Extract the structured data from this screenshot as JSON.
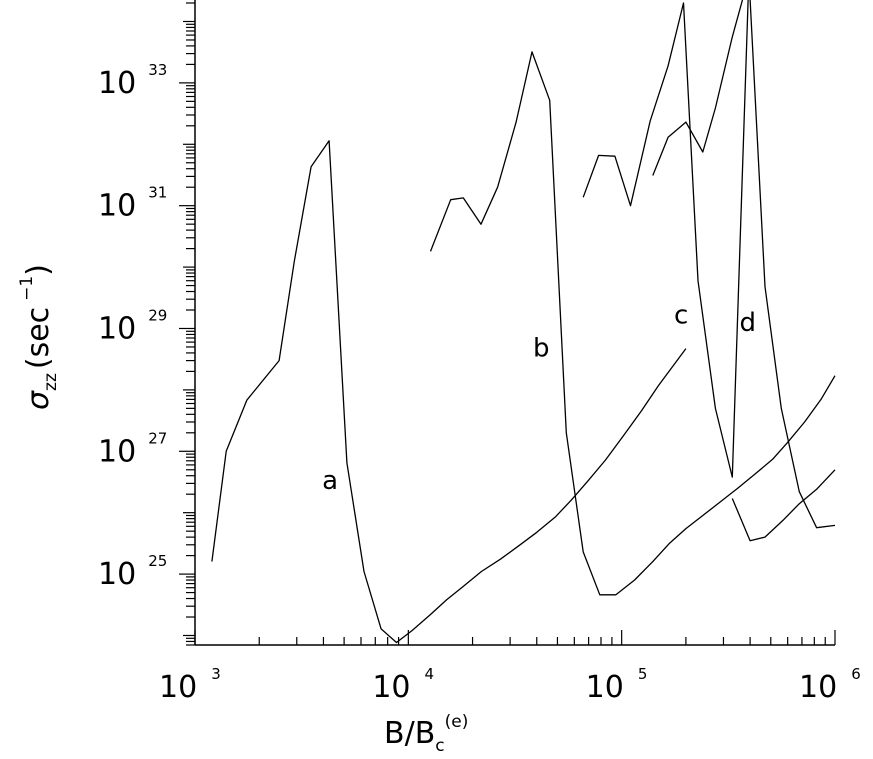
{
  "chart_data": {
    "type": "line",
    "xscale": "log",
    "yscale": "log",
    "xlim": [
      1000,
      1000000
    ],
    "ylim": [
      7e+23,
      2e+34
    ],
    "grid": false,
    "xlabel": {
      "main": "B/B",
      "sub": "c",
      "sup": "(e)"
    },
    "ylabel": {
      "sym": "σ",
      "sub": "zz",
      "text": "(sec",
      "sup": "−1",
      "close": ")"
    },
    "xticks": [
      {
        "value": 1000,
        "base": "10",
        "exp": "3"
      },
      {
        "value": 10000,
        "base": "10",
        "exp": "4"
      },
      {
        "value": 100000,
        "base": "10",
        "exp": "5"
      },
      {
        "value": 1000000,
        "base": "10",
        "exp": "6"
      }
    ],
    "yticks": [
      {
        "value": 1e+25,
        "base": "10",
        "exp": "25"
      },
      {
        "value": 1e+27,
        "base": "10",
        "exp": "27"
      },
      {
        "value": 1e+29,
        "base": "10",
        "exp": "29"
      },
      {
        "value": 1e+31,
        "base": "10",
        "exp": "31"
      },
      {
        "value": 1e+33,
        "base": "10",
        "exp": "33"
      }
    ],
    "annotations": [
      {
        "text": "a",
        "x": 4300,
        "y": 3.2e+26
      },
      {
        "text": "b",
        "x": 42000,
        "y": 4.6e+28
      },
      {
        "text": "c",
        "x": 190000,
        "y": 1.6e+29
      },
      {
        "text": "d",
        "x": 390000,
        "y": 1.2e+29
      }
    ],
    "series": [
      {
        "id": "a-high",
        "x": [
          1200,
          1400,
          1750,
          2480,
          2920,
          3500,
          4250,
          5150,
          6200,
          7450,
          8800,
          10400,
          12700,
          15100,
          18100,
          22000,
          27000,
          33000,
          40000,
          49000,
          58000,
          69000,
          84000,
          102000,
          124000,
          148000,
          200000
        ],
        "y": [
          1.6e+25,
          1e+27,
          6.8e+27,
          3e+28,
          1.24e+30,
          4.3e+31,
          1.14e+32,
          6.5e+26,
          1.1e+25,
          1.28e+24,
          7.7e+23,
          1.2e+24,
          2.2e+24,
          3.8e+24,
          6.3e+24,
          1.1e+25,
          1.75e+25,
          2.9e+25,
          4.8e+25,
          8.6e+25,
          1.6e+26,
          3.2e+26,
          7.2e+26,
          1.8e+27,
          4.6e+27,
          1.15e+28,
          4.7e+28
        ]
      },
      {
        "id": "a-low",
        "x": [
          12700,
          15800,
          18100,
          21900,
          26200,
          32000,
          38000,
          46000,
          55000,
          66000,
          79000,
          94000,
          115000,
          140000,
          168000,
          200000,
          240000,
          290000,
          350000,
          420000,
          510000,
          600000,
          720000,
          860000,
          1000000
        ],
        "y": [
          1.8e+30,
          1.25e+31,
          1.34e+31,
          5e+30,
          2e+31,
          2.3e+32,
          3.2e+33,
          5.2e+32,
          2e+27,
          2.3e+25,
          4.6e+24,
          4.6e+24,
          8e+24,
          1.6e+25,
          3.2e+25,
          5.5e+25,
          9e+25,
          1.5e+26,
          2.5e+26,
          4.2e+26,
          7.4e+26,
          1.4e+27,
          3e+27,
          7e+27,
          1.7e+28
        ]
      },
      {
        "id": "b-high",
        "x": [
          66000,
          78000,
          93000,
          110000,
          136000,
          165000,
          195000,
          228000,
          275000,
          330000,
          395000
        ],
        "y": [
          1.37e+31,
          6.6e+31,
          6.4e+31,
          1e+31,
          2.4e+32,
          1.9e+33,
          2e+34,
          6e+29,
          5e+27,
          3.8e+26,
          5.4e+34
        ]
      },
      {
        "id": "b-low",
        "x": [
          140000,
          165000,
          200000,
          240000,
          275000,
          330000,
          395000,
          470000,
          560000,
          680000,
          820000,
          1000000
        ],
        "y": [
          3.1e+31,
          1.3e+32,
          2.3e+32,
          7.5e+31,
          3.9e+32,
          5.6e+33,
          5.4e+34,
          4.8e+29,
          5e+27,
          2.2e+26,
          5.7e+25,
          6.2e+25
        ]
      },
      {
        "id": "c",
        "x": [
          330000,
          400000,
          470000,
          570000,
          680000,
          820000,
          1000000
        ],
        "y": [
          1.7e+26,
          3.5e+25,
          4e+25,
          7.5e+25,
          1.4e+26,
          2.4e+26,
          5e+26
        ]
      }
    ]
  }
}
